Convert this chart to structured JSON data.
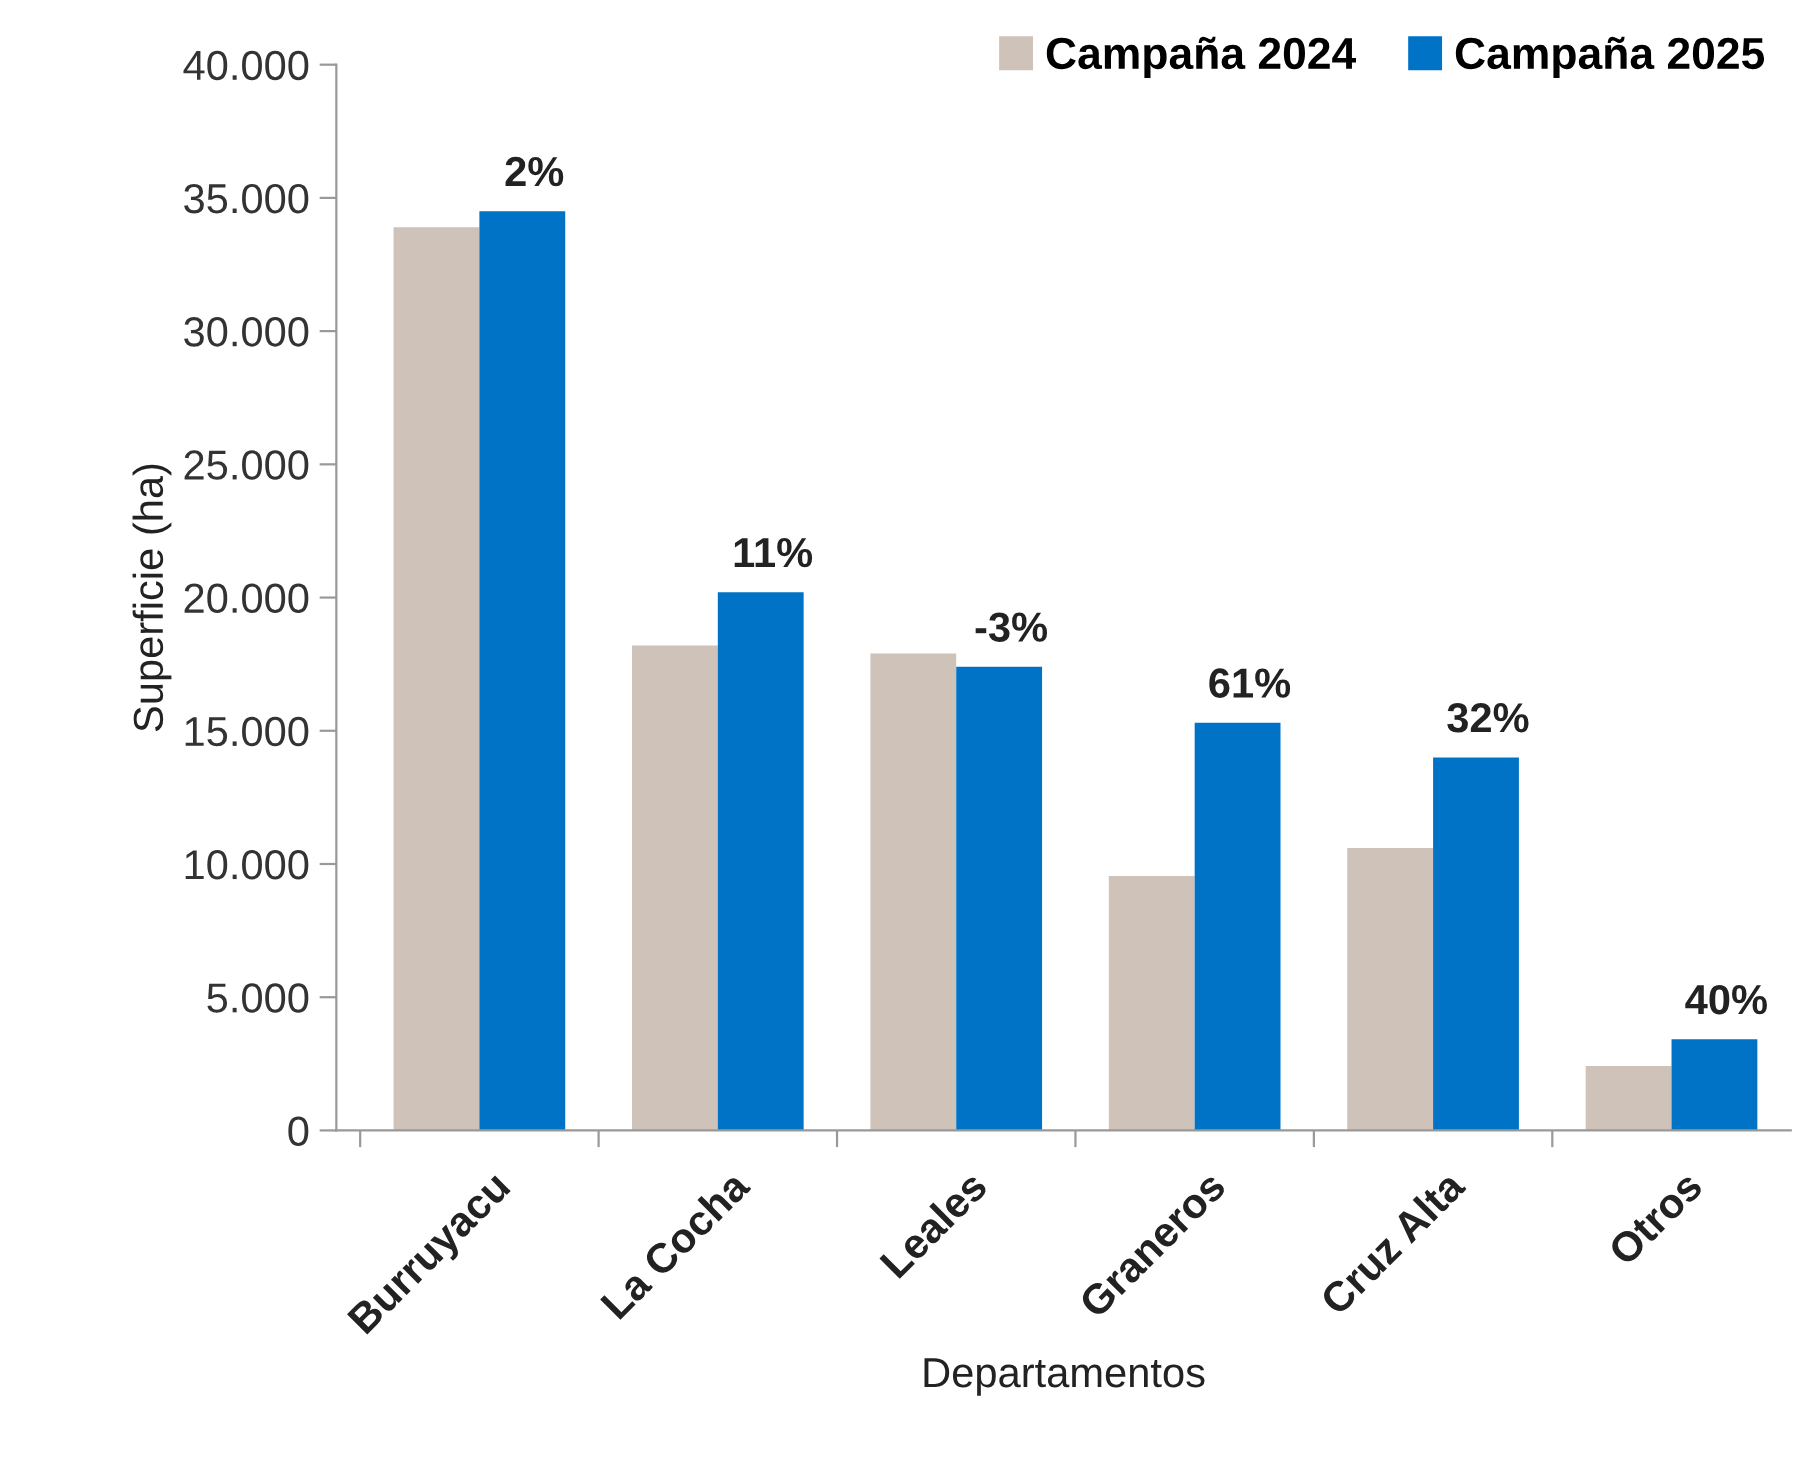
{
  "chart_data": {
    "type": "bar",
    "xlabel": "Departamentos",
    "ylabel": "Superficie (ha)",
    "categories": [
      "Burruyacu",
      "La Cocha",
      "Leales",
      "Graneros",
      "Cruz Alta",
      "Otros"
    ],
    "series": [
      {
        "name": "Campaña 2024",
        "color": "#cfc2b9",
        "values": [
          33900,
          18200,
          17900,
          9550,
          10600,
          2420
        ]
      },
      {
        "name": "Campaña 2025",
        "color": "#0073c7",
        "values": [
          34500,
          20200,
          17400,
          15300,
          14000,
          3420
        ]
      }
    ],
    "annotations": [
      {
        "text": "2%",
        "x": "Burruyacu",
        "y": 34500
      },
      {
        "text": "11%",
        "x": "La Cocha",
        "y": 20200
      },
      {
        "text": "-3%",
        "x": "Leales",
        "y": 17400
      },
      {
        "text": "61%",
        "x": "Graneros",
        "y": 15300
      },
      {
        "text": "32%",
        "x": "Cruz Alta",
        "y": 14000
      },
      {
        "text": "40%",
        "x": "Otros",
        "y": 3420
      }
    ],
    "ylim": [
      0,
      40000
    ],
    "yticks": [
      {
        "value": 0,
        "label": "0"
      },
      {
        "value": 5000,
        "label": "5.000"
      },
      {
        "value": 10000,
        "label": "10.000"
      },
      {
        "value": 15000,
        "label": "15.000"
      },
      {
        "value": 20000,
        "label": "20.000"
      },
      {
        "value": 25000,
        "label": "25.000"
      },
      {
        "value": 30000,
        "label": "30.000"
      },
      {
        "value": 35000,
        "label": "35.000"
      },
      {
        "value": 40000,
        "label": "40.000"
      }
    ],
    "grid": false,
    "legend": "top right"
  }
}
